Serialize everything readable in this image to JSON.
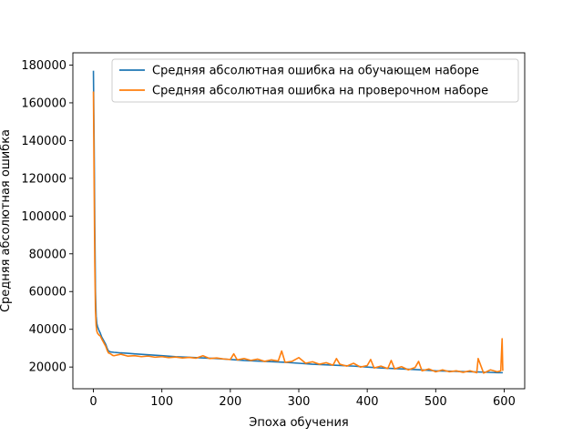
{
  "chart_data": {
    "type": "line",
    "title": "",
    "xlabel": "Эпоха обучения",
    "ylabel": "Средняя абсолютная ошибка",
    "xlim": [
      -30,
      630
    ],
    "ylim": [
      8500,
      186500
    ],
    "xticks": [
      0,
      100,
      200,
      300,
      400,
      500,
      600
    ],
    "yticks": [
      20000,
      40000,
      60000,
      80000,
      100000,
      120000,
      140000,
      160000,
      180000
    ],
    "grid": false,
    "legend_position": "top-right",
    "series": [
      {
        "name": "Средняя абсолютная ошибка на обучающем наборе",
        "color": "#1f77b4",
        "x": [
          0,
          1,
          2,
          3,
          4,
          5,
          6,
          8,
          10,
          12,
          15,
          18,
          20,
          22,
          25,
          30,
          40,
          50,
          60,
          80,
          100,
          120,
          150,
          180,
          200,
          220,
          250,
          280,
          300,
          320,
          350,
          380,
          400,
          420,
          450,
          480,
          500,
          520,
          550,
          570,
          590,
          598
        ],
        "values": [
          177000,
          140000,
          95000,
          60000,
          47000,
          43000,
          41500,
          39500,
          38000,
          36000,
          34000,
          32000,
          30000,
          28500,
          28000,
          27800,
          27500,
          27300,
          27000,
          26500,
          26000,
          25500,
          25000,
          24500,
          24000,
          23500,
          23000,
          22500,
          22000,
          21500,
          21000,
          20500,
          20000,
          19500,
          19000,
          18500,
          18000,
          17800,
          17500,
          17300,
          17000,
          17000
        ]
      },
      {
        "name": "Средняя абсолютная ошибка на проверочном наборе",
        "color": "#ff7f0e",
        "x": [
          0,
          1,
          2,
          3,
          4,
          5,
          6,
          8,
          10,
          12,
          15,
          18,
          20,
          22,
          25,
          28,
          30,
          40,
          50,
          60,
          70,
          80,
          90,
          100,
          110,
          120,
          130,
          140,
          150,
          160,
          170,
          180,
          190,
          200,
          205,
          210,
          220,
          230,
          240,
          250,
          260,
          270,
          275,
          280,
          290,
          300,
          310,
          320,
          330,
          340,
          350,
          355,
          360,
          370,
          380,
          390,
          400,
          405,
          410,
          420,
          430,
          435,
          440,
          450,
          460,
          470,
          475,
          480,
          490,
          500,
          510,
          520,
          530,
          540,
          550,
          560,
          562,
          570,
          580,
          590,
          595,
          597,
          598
        ],
        "values": [
          166000,
          120000,
          75000,
          50000,
          42000,
          39000,
          38000,
          37000,
          36500,
          35000,
          33000,
          31000,
          29000,
          27500,
          27000,
          26200,
          26000,
          26800,
          25800,
          26000,
          25500,
          25800,
          25200,
          25500,
          25000,
          25300,
          24800,
          25100,
          24700,
          26000,
          24500,
          24800,
          24300,
          24000,
          27000,
          23800,
          24500,
          23500,
          24200,
          23000,
          23800,
          23200,
          28500,
          22500,
          23000,
          25000,
          22000,
          22800,
          21500,
          22300,
          21000,
          24500,
          21500,
          20500,
          22000,
          20000,
          20800,
          24000,
          19500,
          20500,
          19200,
          23500,
          19000,
          20200,
          18500,
          19800,
          23000,
          18000,
          19000,
          17500,
          18500,
          17500,
          18000,
          17200,
          18000,
          17000,
          24500,
          16800,
          18500,
          17500,
          18000,
          35000,
          18000
        ]
      }
    ]
  }
}
